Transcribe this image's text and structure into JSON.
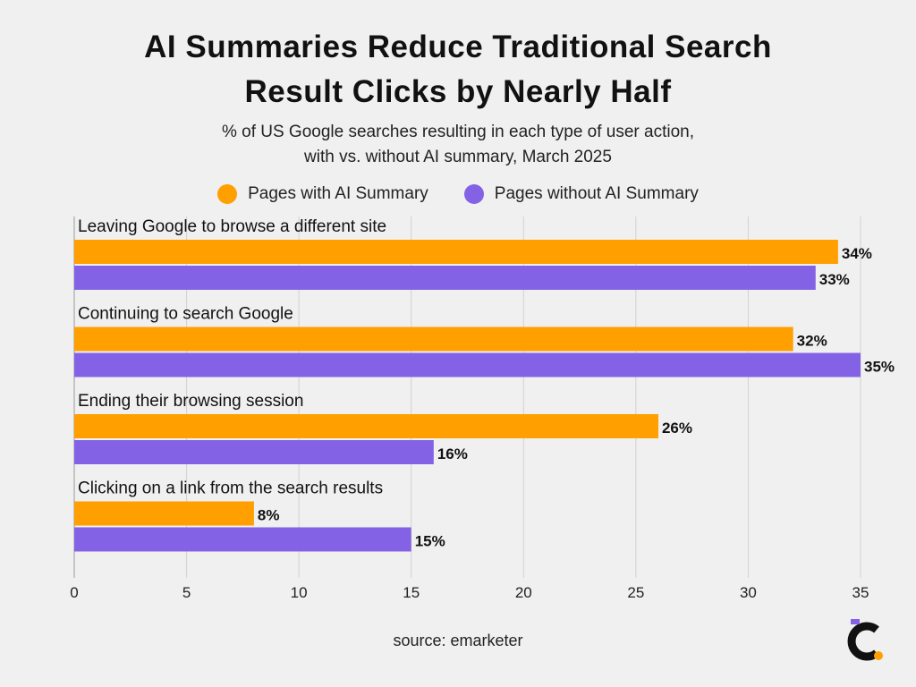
{
  "header": {
    "title_line1": "AI Summaries Reduce Traditional Search",
    "title_line2": "Result Clicks by Nearly Half",
    "subtitle_line1": "% of US Google searches resulting in each type of user action,",
    "subtitle_line2": "with vs. without AI summary, March 2025"
  },
  "legend": {
    "items": [
      {
        "label": "Pages with AI Summary",
        "color": "#ff9f00"
      },
      {
        "label": "Pages without AI Summary",
        "color": "#8462e6"
      }
    ]
  },
  "footer": {
    "source": "source: emarketer",
    "logo_icon": "brand-logo-icon"
  },
  "chart_data": {
    "type": "bar",
    "orientation": "horizontal",
    "categories": [
      "Leaving Google to browse a different site",
      "Continuing to search Google",
      "Ending their browsing session",
      "Clicking on a link from the search results"
    ],
    "series": [
      {
        "name": "Pages with AI Summary",
        "color": "#ff9f00",
        "values": [
          34,
          32,
          26,
          8
        ],
        "labels": [
          "34%",
          "32%",
          "26%",
          "8%"
        ]
      },
      {
        "name": "Pages without AI Summary",
        "color": "#8462e6",
        "values": [
          33,
          35,
          16,
          15
        ],
        "labels": [
          "33%",
          "35%",
          "16%",
          "15%"
        ]
      }
    ],
    "xlim": [
      0,
      35
    ],
    "xticks": [
      0,
      5,
      10,
      15,
      20,
      25,
      30,
      35
    ],
    "grid": true,
    "legend_position": "top-center"
  }
}
